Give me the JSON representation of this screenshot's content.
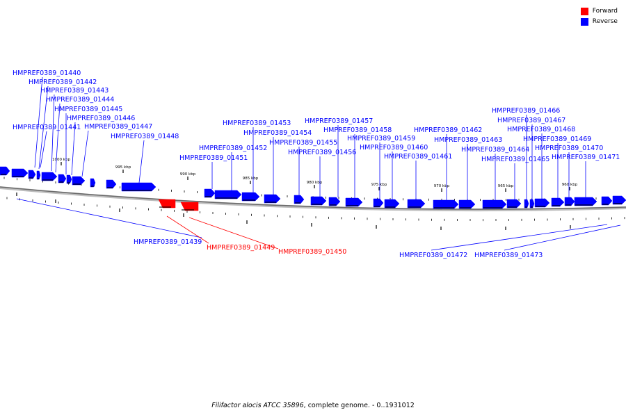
{
  "legend": {
    "forward_label": "Forward",
    "reverse_label": "Reverse",
    "forward_color": "#ff0000",
    "reverse_color": "#0000ff"
  },
  "caption": {
    "organism": "Filifactor alocis ATCC 35896",
    "rest": ", complete genome. - 0..1931012"
  },
  "scale_labels": [
    "1000 kbp",
    "995 kbp",
    "990 kbp",
    "985 kbp",
    "980 kbp",
    "975 kbp",
    "970 kbp",
    "965 kbp",
    "960 kbp"
  ],
  "genes": [
    {
      "name": "HMPREF0389_01439",
      "strand": "reverse"
    },
    {
      "name": "HMPREF0389_01440",
      "strand": "reverse"
    },
    {
      "name": "HMPREF0389_01441",
      "strand": "reverse"
    },
    {
      "name": "HMPREF0389_01442",
      "strand": "reverse"
    },
    {
      "name": "HMPREF0389_01443",
      "strand": "reverse"
    },
    {
      "name": "HMPREF0389_01444",
      "strand": "reverse"
    },
    {
      "name": "HMPREF0389_01445",
      "strand": "reverse"
    },
    {
      "name": "HMPREF0389_01446",
      "strand": "reverse"
    },
    {
      "name": "HMPREF0389_01447",
      "strand": "reverse"
    },
    {
      "name": "HMPREF0389_01448",
      "strand": "reverse"
    },
    {
      "name": "HMPREF0389_01449",
      "strand": "forward"
    },
    {
      "name": "HMPREF0389_01450",
      "strand": "forward"
    },
    {
      "name": "HMPREF0389_01451",
      "strand": "reverse"
    },
    {
      "name": "HMPREF0389_01452",
      "strand": "reverse"
    },
    {
      "name": "HMPREF0389_01453",
      "strand": "reverse"
    },
    {
      "name": "HMPREF0389_01454",
      "strand": "reverse"
    },
    {
      "name": "HMPREF0389_01455",
      "strand": "reverse"
    },
    {
      "name": "HMPREF0389_01456",
      "strand": "reverse"
    },
    {
      "name": "HMPREF0389_01457",
      "strand": "reverse"
    },
    {
      "name": "HMPREF0389_01458",
      "strand": "reverse"
    },
    {
      "name": "HMPREF0389_01459",
      "strand": "reverse"
    },
    {
      "name": "HMPREF0389_01460",
      "strand": "reverse"
    },
    {
      "name": "HMPREF0389_01461",
      "strand": "reverse"
    },
    {
      "name": "HMPREF0389_01462",
      "strand": "reverse"
    },
    {
      "name": "HMPREF0389_01463",
      "strand": "reverse"
    },
    {
      "name": "HMPREF0389_01464",
      "strand": "reverse"
    },
    {
      "name": "HMPREF0389_01465",
      "strand": "reverse"
    },
    {
      "name": "HMPREF0389_01466",
      "strand": "reverse"
    },
    {
      "name": "HMPREF0389_01467",
      "strand": "reverse"
    },
    {
      "name": "HMPREF0389_01468",
      "strand": "reverse"
    },
    {
      "name": "HMPREF0389_01469",
      "strand": "reverse"
    },
    {
      "name": "HMPREF0389_01470",
      "strand": "reverse"
    },
    {
      "name": "HMPREF0389_01471",
      "strand": "reverse"
    },
    {
      "name": "HMPREF0389_01472",
      "strand": "reverse"
    },
    {
      "name": "HMPREF0389_01473",
      "strand": "reverse"
    }
  ]
}
